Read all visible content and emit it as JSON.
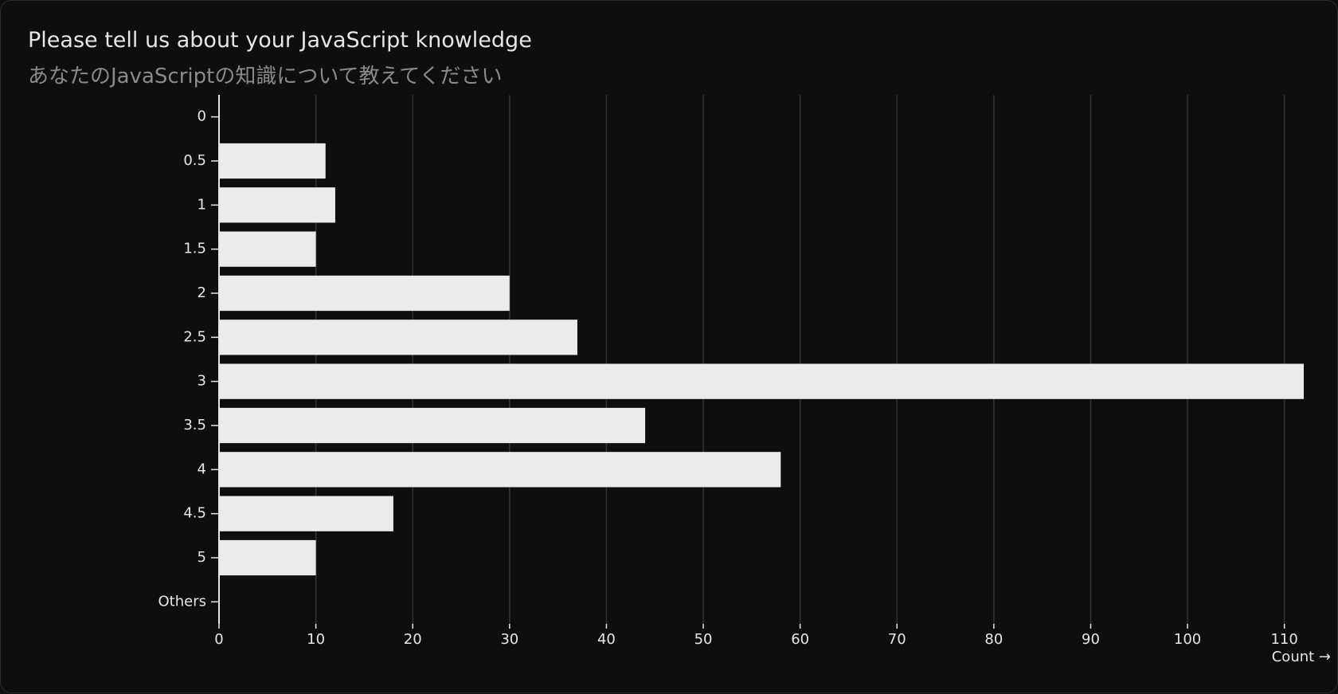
{
  "chart_data": {
    "type": "bar",
    "orientation": "horizontal",
    "title": "Please tell us about your JavaScript knowledge",
    "subtitle": "あなたのJavaScriptの知識について教えてください",
    "x_label": "Count →",
    "categories": [
      "0",
      "0.5",
      "1",
      "1.5",
      "2",
      "2.5",
      "3",
      "3.5",
      "4",
      "4.5",
      "5",
      "Others"
    ],
    "values": [
      0,
      11,
      12,
      10,
      30,
      37,
      112,
      44,
      58,
      18,
      10,
      0
    ],
    "color": "#ebebeb",
    "xlim": [
      0,
      112
    ],
    "xticks": [
      0,
      10,
      20,
      30,
      40,
      50,
      60,
      70,
      80,
      90,
      100,
      110
    ],
    "grid": true
  }
}
